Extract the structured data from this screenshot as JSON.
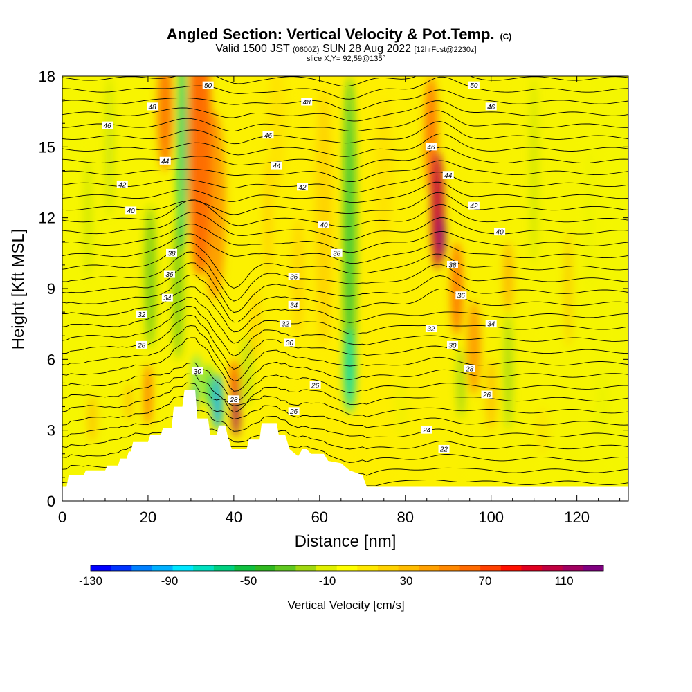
{
  "chart_data": {
    "type": "heatmap",
    "title": "Angled Section: Vertical Velocity & Pot.Temp.",
    "title_mark": "(C)",
    "subtitle_parts": [
      "Valid 1500 JST",
      "(0600Z)",
      "SUN 28 Aug 2022",
      "[12hrFcst@2230z]"
    ],
    "subtitle2": "slice X,Y= 92,59@135°",
    "xlabel": "Distance [nm]",
    "ylabel": "Height [Kft MSL]",
    "xlim": [
      0,
      132
    ],
    "ylim": [
      0,
      18
    ],
    "xticks": [
      "0",
      "20",
      "40",
      "60",
      "80",
      "100",
      "120"
    ],
    "yticks": [
      "0",
      "3",
      "6",
      "9",
      "12",
      "15",
      "18"
    ],
    "colorbar": {
      "label": "Vertical Velocity [cm/s]",
      "range": [
        -130,
        130
      ],
      "tick_labels": [
        "-130",
        "-90",
        "-50",
        "-10",
        "30",
        "70",
        "110"
      ],
      "colors": [
        "#0000ff",
        "#0033ff",
        "#0080ff",
        "#00b0ff",
        "#00e6ff",
        "#00e0c0",
        "#00d080",
        "#10c040",
        "#30b820",
        "#60c820",
        "#a0d810",
        "#e0f000",
        "#ffff00",
        "#ffe800",
        "#ffd200",
        "#ffbc00",
        "#ffa000",
        "#ff8800",
        "#ff6a00",
        "#ff4000",
        "#ff1000",
        "#e00020",
        "#c00040",
        "#a00060",
        "#800080"
      ]
    },
    "terrain_kft": [
      [
        0,
        0.6
      ],
      [
        1,
        0.6
      ],
      [
        1.5,
        1.1
      ],
      [
        5,
        1.1
      ],
      [
        5.5,
        1.3
      ],
      [
        10,
        1.3
      ],
      [
        10.5,
        1.5
      ],
      [
        13,
        1.5
      ],
      [
        13.5,
        1.8
      ],
      [
        15,
        1.8
      ],
      [
        15.5,
        2.1
      ],
      [
        16,
        2.1
      ],
      [
        16.5,
        2.5
      ],
      [
        20,
        2.5
      ],
      [
        20.5,
        2.8
      ],
      [
        23,
        2.8
      ],
      [
        23.5,
        3.1
      ],
      [
        25.5,
        3.1
      ],
      [
        26,
        4.0
      ],
      [
        28,
        4.0
      ],
      [
        28.5,
        4.7
      ],
      [
        31,
        4.7
      ],
      [
        31.5,
        3.5
      ],
      [
        34,
        3.5
      ],
      [
        34.5,
        2.8
      ],
      [
        36,
        2.8
      ],
      [
        36.5,
        3.2
      ],
      [
        38,
        3.2
      ],
      [
        38.5,
        2.8
      ],
      [
        39.5,
        2.2
      ],
      [
        43,
        2.2
      ],
      [
        43.5,
        2.6
      ],
      [
        46,
        2.6
      ],
      [
        46.5,
        3.3
      ],
      [
        50,
        3.3
      ],
      [
        50.5,
        2.8
      ],
      [
        52,
        2.8
      ],
      [
        53,
        2.2
      ],
      [
        55,
        1.9
      ],
      [
        56,
        2.2
      ],
      [
        57,
        2.2
      ],
      [
        58,
        2.0
      ],
      [
        61,
        2.0
      ],
      [
        62,
        1.7
      ],
      [
        65,
        1.6
      ],
      [
        67,
        1.3
      ],
      [
        70,
        1.1
      ],
      [
        71,
        0.6
      ],
      [
        132,
        0.6
      ]
    ],
    "velocity_cells": [
      {
        "x": 32,
        "y": 15.0,
        "w": 2.8,
        "h": 5.5,
        "v": 70,
        "a": 0.75
      },
      {
        "x": 35.5,
        "y": 12.5,
        "w": 2.6,
        "h": 4.0,
        "v": 60,
        "a": 0.6
      },
      {
        "x": 24,
        "y": 16.5,
        "w": 1.8,
        "h": 2.5,
        "v": 70,
        "a": 0.65
      },
      {
        "x": 28,
        "y": 15.0,
        "w": 1.3,
        "h": 4.5,
        "v": -60,
        "a": 0.8
      },
      {
        "x": 27,
        "y": 9.0,
        "w": 1.2,
        "h": 3.0,
        "v": -40,
        "a": 0.6
      },
      {
        "x": 20.5,
        "y": 9.5,
        "w": 1.3,
        "h": 3.0,
        "v": -45,
        "a": 0.6
      },
      {
        "x": 11,
        "y": 15.0,
        "w": 1.0,
        "h": 3.0,
        "v": -25,
        "a": 0.45
      },
      {
        "x": 6,
        "y": 12.0,
        "w": 1.0,
        "h": 2.5,
        "v": -20,
        "a": 0.4
      },
      {
        "x": 40.5,
        "y": 4.0,
        "w": 0.9,
        "h": 1.3,
        "v": 110,
        "a": 0.9
      },
      {
        "x": 40.3,
        "y": 5.2,
        "w": 1.0,
        "h": 0.8,
        "v": 80,
        "a": 0.7
      },
      {
        "x": 36.2,
        "y": 4.2,
        "w": 1.3,
        "h": 1.2,
        "v": -95,
        "a": 0.85
      },
      {
        "x": 34,
        "y": 4.9,
        "w": 0.8,
        "h": 0.9,
        "v": -65,
        "a": 0.75
      },
      {
        "x": 31.3,
        "y": 5.2,
        "w": 0.7,
        "h": 1.0,
        "v": -70,
        "a": 0.7
      },
      {
        "x": 30.5,
        "y": 4.2,
        "w": 0.7,
        "h": 0.6,
        "v": -105,
        "a": 0.7
      },
      {
        "x": 43,
        "y": 5.5,
        "w": 1.6,
        "h": 1.5,
        "v": -25,
        "a": 0.5
      },
      {
        "x": 20,
        "y": 4.5,
        "w": 0.9,
        "h": 1.3,
        "v": 70,
        "a": 0.65
      },
      {
        "x": 15.5,
        "y": 4.2,
        "w": 1.0,
        "h": 0.8,
        "v": 45,
        "a": 0.5
      },
      {
        "x": 7,
        "y": 3.5,
        "w": 1.2,
        "h": 1.0,
        "v": 40,
        "a": 0.45
      },
      {
        "x": 67,
        "y": 11.0,
        "w": 1.5,
        "h": 7.0,
        "v": -55,
        "a": 0.75
      },
      {
        "x": 67,
        "y": 5.5,
        "w": 1.4,
        "h": 1.8,
        "v": -75,
        "a": 0.7
      },
      {
        "x": 61,
        "y": 12.0,
        "w": 2.0,
        "h": 5.5,
        "v": 30,
        "a": 0.5
      },
      {
        "x": 86,
        "y": 15.5,
        "w": 1.5,
        "h": 2.5,
        "v": 70,
        "a": 0.65
      },
      {
        "x": 87.5,
        "y": 12.3,
        "w": 1.5,
        "h": 2.5,
        "v": 100,
        "a": 0.9
      },
      {
        "x": 88.5,
        "y": 11.2,
        "w": 0.8,
        "h": 0.9,
        "v": 120,
        "a": 0.85
      },
      {
        "x": 92,
        "y": 9.0,
        "w": 1.4,
        "h": 2.0,
        "v": 70,
        "a": 0.65
      },
      {
        "x": 96,
        "y": 6.5,
        "w": 1.6,
        "h": 2.0,
        "v": 60,
        "a": 0.6
      },
      {
        "x": 100,
        "y": 4.5,
        "w": 1.3,
        "h": 1.5,
        "v": 40,
        "a": 0.5
      },
      {
        "x": 93,
        "y": 5.0,
        "w": 1.0,
        "h": 1.5,
        "v": -30,
        "a": 0.5
      },
      {
        "x": 104,
        "y": 9.5,
        "w": 1.2,
        "h": 1.5,
        "v": 50,
        "a": 0.5
      },
      {
        "x": 104,
        "y": 5.5,
        "w": 1.0,
        "h": 2.5,
        "v": -35,
        "a": 0.5
      },
      {
        "x": 110,
        "y": 14.0,
        "w": 1.0,
        "h": 4.0,
        "v": -20,
        "a": 0.4
      },
      {
        "x": 118,
        "y": 9.0,
        "w": 1.0,
        "h": 2.5,
        "v": 40,
        "a": 0.4
      },
      {
        "x": 123,
        "y": 12.0,
        "w": 1.0,
        "h": 3.0,
        "v": -15,
        "a": 0.35
      },
      {
        "x": 112,
        "y": 3.0,
        "w": 1.5,
        "h": 1.0,
        "v": 25,
        "a": 0.4
      },
      {
        "x": 75,
        "y": 14.0,
        "w": 2.0,
        "h": 3.0,
        "v": 25,
        "a": 0.4
      },
      {
        "x": 50,
        "y": 16.0,
        "w": 2.0,
        "h": 3.0,
        "v": 25,
        "a": 0.4
      },
      {
        "x": 55,
        "y": 9.5,
        "w": 1.5,
        "h": 2.5,
        "v": 30,
        "a": 0.45
      },
      {
        "x": 48,
        "y": 12.0,
        "w": 1.2,
        "h": 2.5,
        "v": 35,
        "a": 0.45
      },
      {
        "x": 45,
        "y": 7.5,
        "w": 1.2,
        "h": 1.5,
        "v": 30,
        "a": 0.45
      },
      {
        "x": 126,
        "y": 4.0,
        "w": 1.5,
        "h": 1.5,
        "v": -15,
        "a": 0.4
      },
      {
        "x": 79,
        "y": 4.0,
        "w": 1.5,
        "h": 1.2,
        "v": -15,
        "a": 0.35
      }
    ],
    "isotherm_labels": [
      {
        "x": 34,
        "y": 17.6,
        "t": "50"
      },
      {
        "x": 96,
        "y": 17.6,
        "t": "50"
      },
      {
        "x": 21,
        "y": 16.7,
        "t": "48"
      },
      {
        "x": 57,
        "y": 16.9,
        "t": "48"
      },
      {
        "x": 10.5,
        "y": 15.9,
        "t": "46"
      },
      {
        "x": 48,
        "y": 15.5,
        "t": "46"
      },
      {
        "x": 100,
        "y": 16.7,
        "t": "46"
      },
      {
        "x": 86,
        "y": 15.0,
        "t": "46"
      },
      {
        "x": 24,
        "y": 14.4,
        "t": "44"
      },
      {
        "x": 50,
        "y": 14.2,
        "t": "44"
      },
      {
        "x": 90,
        "y": 13.8,
        "t": "44"
      },
      {
        "x": 14,
        "y": 13.4,
        "t": "42"
      },
      {
        "x": 56,
        "y": 13.3,
        "t": "42"
      },
      {
        "x": 96,
        "y": 12.5,
        "t": "42"
      },
      {
        "x": 16,
        "y": 12.3,
        "t": "40"
      },
      {
        "x": 61,
        "y": 11.7,
        "t": "40"
      },
      {
        "x": 102,
        "y": 11.4,
        "t": "40"
      },
      {
        "x": 25.5,
        "y": 10.5,
        "t": "38"
      },
      {
        "x": 64,
        "y": 10.5,
        "t": "38"
      },
      {
        "x": 91,
        "y": 10.0,
        "t": "38"
      },
      {
        "x": 25,
        "y": 9.6,
        "t": "36"
      },
      {
        "x": 54,
        "y": 9.5,
        "t": "36"
      },
      {
        "x": 93,
        "y": 8.7,
        "t": "36"
      },
      {
        "x": 24.5,
        "y": 8.6,
        "t": "34"
      },
      {
        "x": 54,
        "y": 8.3,
        "t": "34"
      },
      {
        "x": 100,
        "y": 7.5,
        "t": "34"
      },
      {
        "x": 18.5,
        "y": 7.9,
        "t": "32"
      },
      {
        "x": 52,
        "y": 7.5,
        "t": "32"
      },
      {
        "x": 86,
        "y": 7.3,
        "t": "32"
      },
      {
        "x": 18.5,
        "y": 6.6,
        "t": "28"
      },
      {
        "x": 53,
        "y": 6.7,
        "t": "30"
      },
      {
        "x": 91,
        "y": 6.6,
        "t": "30"
      },
      {
        "x": 31.5,
        "y": 5.5,
        "t": "30"
      },
      {
        "x": 95,
        "y": 5.6,
        "t": "28"
      },
      {
        "x": 40,
        "y": 4.3,
        "t": "28"
      },
      {
        "x": 59,
        "y": 4.9,
        "t": "26"
      },
      {
        "x": 99,
        "y": 4.5,
        "t": "26"
      },
      {
        "x": 54,
        "y": 3.8,
        "t": "26"
      },
      {
        "x": 85,
        "y": 3.0,
        "t": "24"
      },
      {
        "x": 89,
        "y": 2.2,
        "t": "22"
      }
    ]
  }
}
